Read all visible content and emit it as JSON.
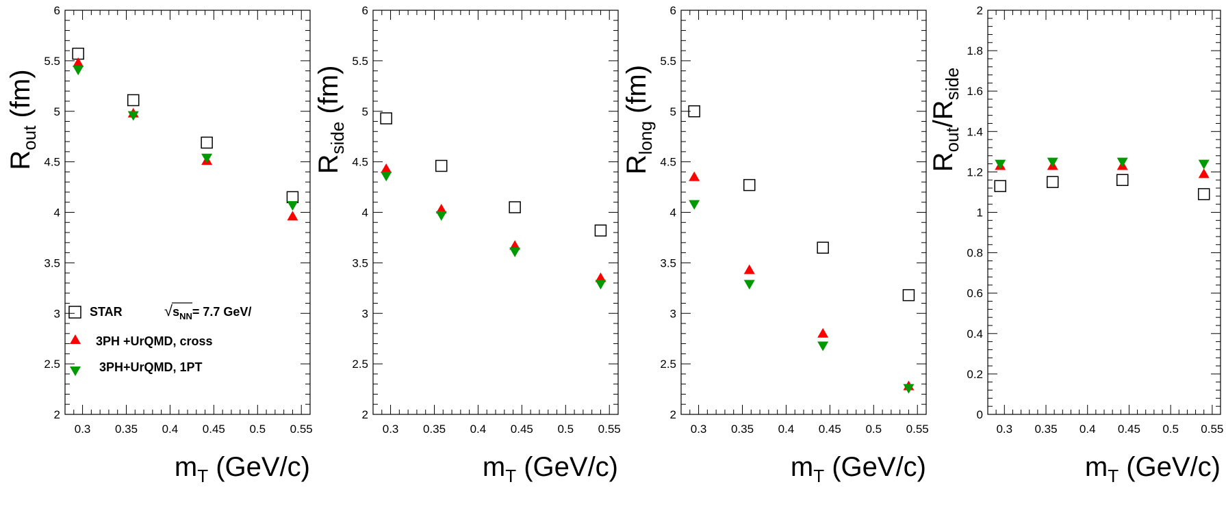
{
  "colors": {
    "star": "#000000",
    "cross": "#ff0000",
    "onept": "#009900"
  },
  "legend": {
    "star": "STAR",
    "energy_sqrt": "s",
    "energy_sub": "NN",
    "energy_value": "= 7.7 GeV/",
    "cross": "3PH +UrQMD, cross",
    "onept": "3PH+UrQMD, 1PT"
  },
  "chart_data": [
    {
      "type": "scatter",
      "ylabel_main": "R",
      "ylabel_sub": "out",
      "ylabel_unit": " (fm)",
      "xlabel_main": "m",
      "xlabel_sub": "T",
      "xlabel_unit": " (GeV/c)",
      "xlim": [
        0.28,
        0.56
      ],
      "ylim": [
        2,
        6
      ],
      "xticks": [
        "0.3",
        "0.35",
        "0.4",
        "0.45",
        "0.5",
        "0.55"
      ],
      "yticks": [
        "2",
        "2.5",
        "3",
        "3.5",
        "4",
        "4.5",
        "5",
        "5.5",
        "6"
      ],
      "series": [
        {
          "name": "STAR",
          "marker": "open-square",
          "x": [
            0.295,
            0.358,
            0.442,
            0.54
          ],
          "y": [
            5.57,
            5.11,
            4.69,
            4.15
          ]
        },
        {
          "name": "3PH +UrQMD, cross",
          "marker": "triangle-up",
          "x": [
            0.295,
            0.358,
            0.442,
            0.54
          ],
          "y": [
            5.48,
            4.98,
            4.51,
            3.96
          ]
        },
        {
          "name": "3PH+UrQMD, 1PT",
          "marker": "triangle-down",
          "x": [
            0.295,
            0.358,
            0.442,
            0.54
          ],
          "y": [
            5.41,
            4.96,
            4.54,
            4.07
          ]
        }
      ]
    },
    {
      "type": "scatter",
      "ylabel_main": "R",
      "ylabel_sub": "side",
      "ylabel_unit": " (fm)",
      "xlabel_main": "m",
      "xlabel_sub": "T",
      "xlabel_unit": " (GeV/c)",
      "xlim": [
        0.28,
        0.56
      ],
      "ylim": [
        2,
        6
      ],
      "xticks": [
        "0.3",
        "0.35",
        "0.4",
        "0.45",
        "0.5",
        "0.55"
      ],
      "yticks": [
        "2",
        "2.5",
        "3",
        "3.5",
        "4",
        "4.5",
        "5",
        "5.5",
        "6"
      ],
      "series": [
        {
          "name": "STAR",
          "marker": "open-square",
          "x": [
            0.295,
            0.358,
            0.442,
            0.54
          ],
          "y": [
            4.93,
            4.46,
            4.05,
            3.82
          ]
        },
        {
          "name": "3PH +UrQMD, cross",
          "marker": "triangle-up",
          "x": [
            0.295,
            0.358,
            0.442,
            0.54
          ],
          "y": [
            4.43,
            4.03,
            3.67,
            3.35
          ]
        },
        {
          "name": "3PH+UrQMD, 1PT",
          "marker": "triangle-down",
          "x": [
            0.295,
            0.358,
            0.442,
            0.54
          ],
          "y": [
            4.36,
            3.97,
            3.61,
            3.29
          ]
        }
      ]
    },
    {
      "type": "scatter",
      "ylabel_main": "R",
      "ylabel_sub": "long",
      "ylabel_unit": " (fm)",
      "xlabel_main": "m",
      "xlabel_sub": "T",
      "xlabel_unit": " (GeV/c)",
      "xlim": [
        0.28,
        0.56
      ],
      "ylim": [
        2,
        6
      ],
      "xticks": [
        "0.3",
        "0.35",
        "0.4",
        "0.45",
        "0.5",
        "0.55"
      ],
      "yticks": [
        "2",
        "2.5",
        "3",
        "3.5",
        "4",
        "4.5",
        "5",
        "5.5",
        "6"
      ],
      "series": [
        {
          "name": "STAR",
          "marker": "open-square",
          "x": [
            0.295,
            0.358,
            0.442,
            0.54
          ],
          "y": [
            5.0,
            4.27,
            3.65,
            3.18
          ]
        },
        {
          "name": "3PH +UrQMD, cross",
          "marker": "triangle-up",
          "x": [
            0.295,
            0.358,
            0.442,
            0.54
          ],
          "y": [
            4.35,
            3.43,
            2.8,
            2.28
          ]
        },
        {
          "name": "3PH+UrQMD, 1PT",
          "marker": "triangle-down",
          "x": [
            0.295,
            0.358,
            0.442,
            0.54
          ],
          "y": [
            4.08,
            3.29,
            2.68,
            2.26
          ]
        }
      ]
    },
    {
      "type": "scatter",
      "ylabel_main": "R",
      "ylabel_sub": "out",
      "ylabel_mid": "/R",
      "ylabel_sub2": "side",
      "ylabel_unit": "",
      "xlabel_main": "m",
      "xlabel_sub": "T",
      "xlabel_unit": " (GeV/c)",
      "xlim": [
        0.28,
        0.56
      ],
      "ylim": [
        0,
        2
      ],
      "xticks": [
        "0.3",
        "0.35",
        "0.4",
        "0.45",
        "0.5",
        "0.55"
      ],
      "yticks": [
        "0",
        "0.2",
        "0.4",
        "0.6",
        "0.8",
        "1",
        "1.2",
        "1.4",
        "1.6",
        "1.8",
        "2"
      ],
      "series": [
        {
          "name": "STAR",
          "marker": "open-square",
          "x": [
            0.295,
            0.358,
            0.442,
            0.54
          ],
          "y": [
            1.13,
            1.15,
            1.16,
            1.09
          ]
        },
        {
          "name": "3PH +UrQMD, cross",
          "marker": "triangle-up",
          "x": [
            0.295,
            0.358,
            0.442,
            0.54
          ],
          "y": [
            1.23,
            1.23,
            1.23,
            1.19
          ]
        },
        {
          "name": "3PH+UrQMD, 1PT",
          "marker": "triangle-down",
          "x": [
            0.295,
            0.358,
            0.442,
            0.54
          ],
          "y": [
            1.24,
            1.25,
            1.25,
            1.24
          ]
        }
      ]
    }
  ]
}
